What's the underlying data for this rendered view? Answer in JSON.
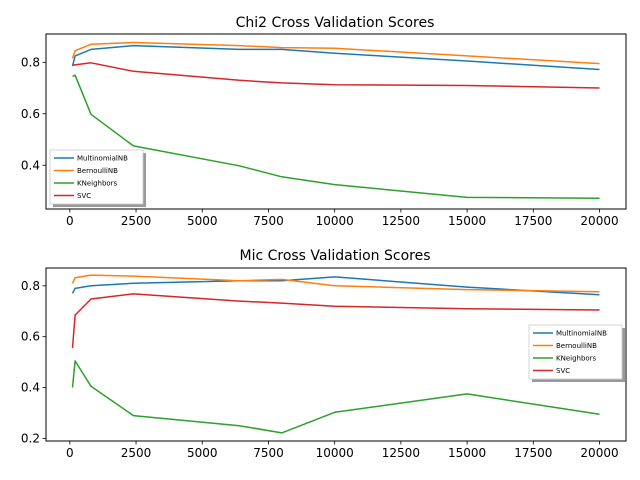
{
  "chart_data": [
    {
      "type": "line",
      "title": "Chi2 Cross Validation Scores",
      "xlabel": "",
      "ylabel": "",
      "xlim": [
        -900,
        21000
      ],
      "ylim": [
        0.23,
        0.91
      ],
      "xticks": [
        0,
        2500,
        5000,
        7500,
        10000,
        12500,
        15000,
        17500,
        20000
      ],
      "yticks": [
        0.4,
        0.6,
        0.8
      ],
      "ytick_labels": [
        "0.4",
        "0.6",
        "0.8"
      ],
      "legend_position": "lower-left",
      "x": [
        100,
        200,
        800,
        2400,
        6400,
        8000,
        10000,
        15000,
        20000
      ],
      "series": [
        {
          "name": "MultinomialNB",
          "color": "#1f77b4",
          "values": [
            0.785,
            0.825,
            0.85,
            0.865,
            0.85,
            0.85,
            0.835,
            0.805,
            0.772
          ]
        },
        {
          "name": "BernoulliNB",
          "color": "#ff7f0e",
          "values": [
            0.815,
            0.845,
            0.87,
            0.877,
            0.865,
            0.857,
            0.855,
            0.825,
            0.795
          ]
        },
        {
          "name": "KNeighbors",
          "color": "#2ca02c",
          "values": [
            0.745,
            0.75,
            0.598,
            0.475,
            0.398,
            0.355,
            0.325,
            0.275,
            0.272
          ]
        },
        {
          "name": "SVC",
          "color": "#d62728",
          "values": [
            0.79,
            0.79,
            0.798,
            0.765,
            0.73,
            0.72,
            0.713,
            0.71,
            0.7
          ]
        }
      ]
    },
    {
      "type": "line",
      "title": "Mic Cross Validation Scores",
      "xlabel": "",
      "ylabel": "",
      "xlim": [
        -900,
        21000
      ],
      "ylim": [
        0.19,
        0.87
      ],
      "xticks": [
        0,
        2500,
        5000,
        7500,
        10000,
        12500,
        15000,
        17500,
        20000
      ],
      "yticks": [
        0.2,
        0.4,
        0.6,
        0.8
      ],
      "ytick_labels": [
        "0.2",
        "0.4",
        "0.6",
        "0.8"
      ],
      "legend_position": "center-right",
      "x": [
        100,
        200,
        800,
        2400,
        6400,
        8000,
        10000,
        15000,
        20000
      ],
      "series": [
        {
          "name": "MultinomialNB",
          "color": "#1f77b4",
          "values": [
            0.77,
            0.79,
            0.8,
            0.81,
            0.82,
            0.82,
            0.835,
            0.795,
            0.765
          ]
        },
        {
          "name": "BernoulliNB",
          "color": "#ff7f0e",
          "values": [
            0.81,
            0.832,
            0.842,
            0.838,
            0.82,
            0.825,
            0.8,
            0.785,
            0.777
          ]
        },
        {
          "name": "KNeighbors",
          "color": "#2ca02c",
          "values": [
            0.4,
            0.505,
            0.405,
            0.29,
            0.25,
            0.222,
            0.303,
            0.375,
            0.295
          ]
        },
        {
          "name": "SVC",
          "color": "#d62728",
          "values": [
            0.555,
            0.685,
            0.748,
            0.768,
            0.74,
            0.732,
            0.72,
            0.71,
            0.705
          ]
        }
      ]
    }
  ]
}
